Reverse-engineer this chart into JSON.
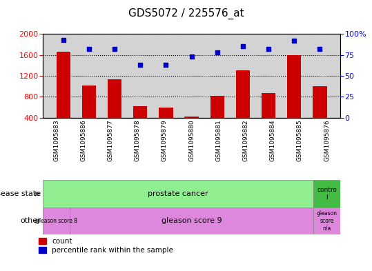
{
  "title": "GDS5072 / 225576_at",
  "samples": [
    "GSM1095883",
    "GSM1095886",
    "GSM1095877",
    "GSM1095878",
    "GSM1095879",
    "GSM1095880",
    "GSM1095881",
    "GSM1095882",
    "GSM1095884",
    "GSM1095885",
    "GSM1095876"
  ],
  "counts": [
    1660,
    1020,
    1130,
    620,
    600,
    430,
    820,
    1300,
    870,
    1600,
    1010
  ],
  "percentiles": [
    93,
    82,
    82,
    63,
    63,
    73,
    78,
    85,
    82,
    92,
    82
  ],
  "ylim_left": [
    400,
    2000
  ],
  "ylim_right": [
    0,
    100
  ],
  "left_ticks": [
    400,
    800,
    1200,
    1600,
    2000
  ],
  "right_ticks": [
    0,
    25,
    50,
    75,
    100
  ],
  "bar_color": "#cc0000",
  "dot_color": "#0000cc",
  "chart_bg": "#d3d3d3",
  "prostate_color": "#90ee90",
  "control_color": "#44bb44",
  "gleason_color": "#dd88dd",
  "title_fontsize": 11,
  "tick_fontsize": 8,
  "label_fontsize": 8,
  "bar_width": 0.55
}
